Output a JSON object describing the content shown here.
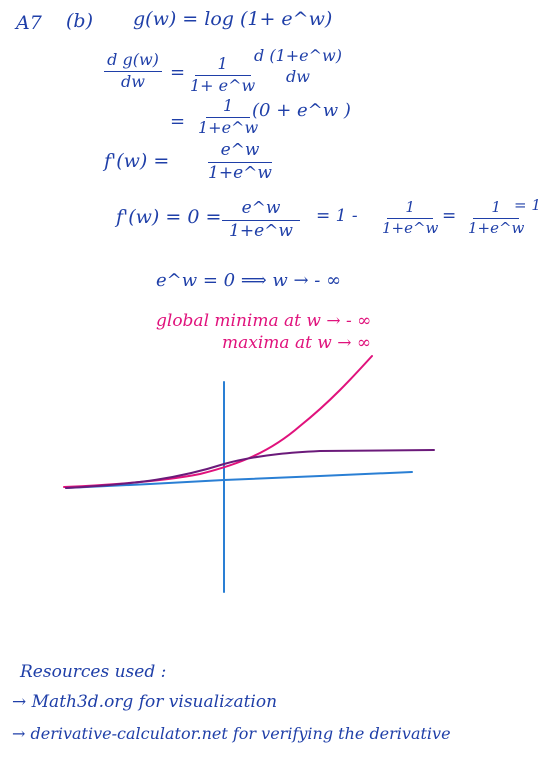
{
  "header": {
    "label": "A7",
    "part": "(b)",
    "definition": "g(w) = log (1+ e^w)"
  },
  "derivation": {
    "line1": {
      "lhs_num": "d g(w)",
      "lhs_den": "dw",
      "eq": "=",
      "frac_num": "1",
      "frac_den": "1+ e^w",
      "tail_num": "d (1+e^w)",
      "tail_den": "dw"
    },
    "line2": {
      "eq": "=",
      "frac_num": "1",
      "frac_den": "1+e^w",
      "tail": "(0 + e^w )"
    },
    "line3": {
      "lhs": "f'(w) =",
      "frac_num": "e^w",
      "frac_den": "1+e^w"
    },
    "line4": {
      "lhs": "f'(w) = 0 =",
      "frac_num": "e^w",
      "frac_den": "1+e^w",
      "mid": "=  1 -",
      "frac2_num": "1",
      "frac2_den": "1+e^w",
      "eq2": "=",
      "frac3_num": "1",
      "frac3_den": "1+e^w",
      "tail": "= 1"
    },
    "line5": "e^w = 0   ⟹   w → - ∞"
  },
  "conclusion": {
    "minima": "global minima   at   w → - ∞",
    "maxima": "maxima   at  w → ∞"
  },
  "colors": {
    "ink_blue": "#1f3fa8",
    "ink_pink": "#e0127c",
    "ink_purple": "#6b1a7a",
    "axis_blue": "#2a7fd4"
  },
  "resources": {
    "title": "Resources used :",
    "items": [
      "→ Math3d.org   for visualization",
      "→ derivative-calculator.net   for verifying the derivative"
    ]
  }
}
